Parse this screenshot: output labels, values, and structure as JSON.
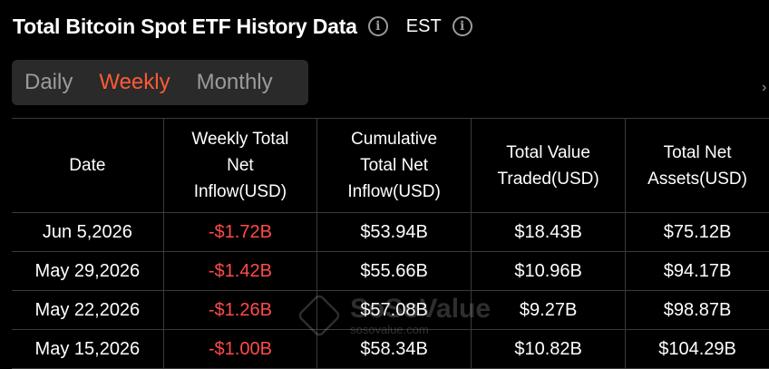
{
  "header": {
    "title": "Total Bitcoin Spot ETF History Data",
    "timezone": "EST"
  },
  "tabs": [
    {
      "label": "Daily",
      "active": false
    },
    {
      "label": "Weekly",
      "active": true
    },
    {
      "label": "Monthly",
      "active": false
    }
  ],
  "table": {
    "columns": [
      "Date",
      "Weekly Total Net Inflow(USD)",
      "Cumulative Total Net Inflow(USD)",
      "Total Value Traded(USD)",
      "Total Net Assets(USD)"
    ],
    "rows": [
      [
        "Jun 5,2026",
        "-$1.72B",
        "$53.94B",
        "$18.43B",
        "$75.12B"
      ],
      [
        "May 29,2026",
        "-$1.42B",
        "$55.66B",
        "$10.96B",
        "$94.17B"
      ],
      [
        "May 22,2026",
        "-$1.26B",
        "$57.08B",
        "$9.27B",
        "$98.87B"
      ],
      [
        "May 15,2026",
        "-$1.00B",
        "$58.34B",
        "$10.82B",
        "$104.29B"
      ]
    ]
  },
  "watermark": {
    "name": "SoSoValue",
    "url": "sosovalue.com"
  },
  "colors": {
    "accent": "#ff5a36",
    "negative": "#ff4b4b",
    "background": "#000000",
    "tab_background": "#2a2a2a",
    "border": "#3a3a3a"
  }
}
